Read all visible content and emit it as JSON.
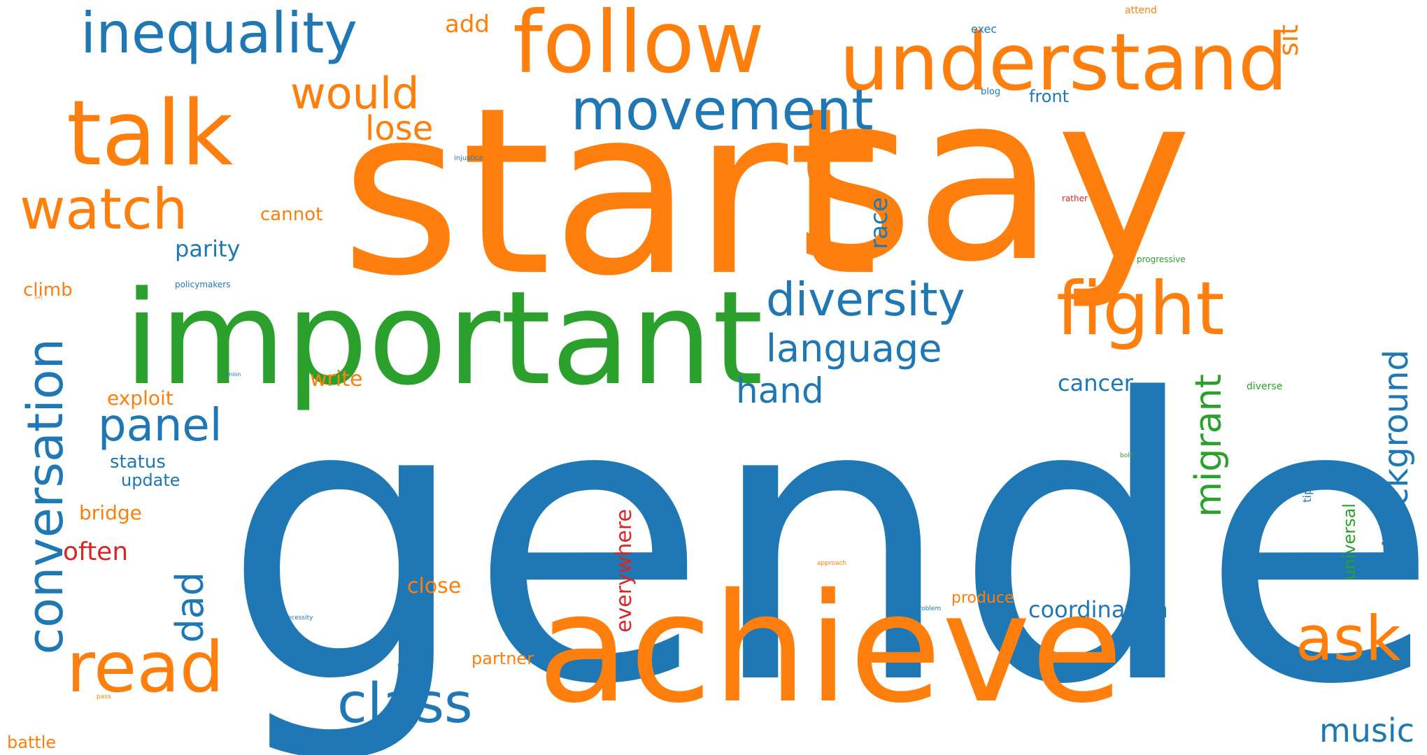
{
  "colors": {
    "blue": "#1f77b4",
    "orange": "#ff7f0e",
    "green": "#2ca02c",
    "red": "#d62728",
    "background": "#ffffff"
  },
  "words": [
    {
      "text": "gender",
      "color": "blue"
    },
    {
      "text": "start",
      "color": "orange"
    },
    {
      "text": "say",
      "color": "orange"
    },
    {
      "text": "achieve",
      "color": "orange"
    },
    {
      "text": "important",
      "color": "green"
    },
    {
      "text": "talk",
      "color": "orange"
    },
    {
      "text": "follow",
      "color": "orange"
    },
    {
      "text": "understand",
      "color": "orange"
    },
    {
      "text": "inequality",
      "color": "blue"
    },
    {
      "text": "read",
      "color": "orange"
    },
    {
      "text": "conversation",
      "color": "blue"
    },
    {
      "text": "fight",
      "color": "orange"
    },
    {
      "text": "movement",
      "color": "blue"
    },
    {
      "text": "watch",
      "color": "orange"
    },
    {
      "text": "diversity",
      "color": "blue"
    },
    {
      "text": "class",
      "color": "blue"
    },
    {
      "text": "ask",
      "color": "orange"
    },
    {
      "text": "panel",
      "color": "blue"
    },
    {
      "text": "would",
      "color": "orange"
    },
    {
      "text": "language",
      "color": "blue"
    },
    {
      "text": "migrant",
      "color": "green"
    },
    {
      "text": "background",
      "color": "blue"
    },
    {
      "text": "hand",
      "color": "blue"
    },
    {
      "text": "dad",
      "color": "blue"
    },
    {
      "text": "lose",
      "color": "orange"
    },
    {
      "text": "music",
      "color": "blue"
    },
    {
      "text": "race",
      "color": "blue"
    },
    {
      "text": "sit",
      "color": "orange"
    },
    {
      "text": "often",
      "color": "red"
    },
    {
      "text": "everywhere",
      "color": "red"
    },
    {
      "text": "coordination",
      "color": "blue"
    },
    {
      "text": "parity",
      "color": "blue"
    },
    {
      "text": "cancer",
      "color": "blue"
    },
    {
      "text": "add",
      "color": "orange"
    },
    {
      "text": "universal",
      "color": "green"
    },
    {
      "text": "close",
      "color": "orange"
    },
    {
      "text": "write",
      "color": "orange"
    },
    {
      "text": "exploit",
      "color": "orange"
    },
    {
      "text": "bridge",
      "color": "orange"
    },
    {
      "text": "status",
      "color": "blue"
    },
    {
      "text": "cannot",
      "color": "orange"
    },
    {
      "text": "climb",
      "color": "orange"
    },
    {
      "text": "update",
      "color": "blue"
    },
    {
      "text": "partner",
      "color": "orange"
    },
    {
      "text": "battle",
      "color": "orange"
    },
    {
      "text": "front",
      "color": "blue"
    },
    {
      "text": "produce",
      "color": "orange"
    },
    {
      "text": "exec",
      "color": "blue"
    },
    {
      "text": "attend",
      "color": "orange"
    },
    {
      "text": "blog",
      "color": "blue"
    },
    {
      "text": "tip",
      "color": "blue"
    },
    {
      "text": "progressive",
      "color": "green"
    },
    {
      "text": "diverse",
      "color": "green"
    },
    {
      "text": "rather",
      "color": "red"
    },
    {
      "text": "injustice",
      "color": "blue"
    },
    {
      "text": "policymakers",
      "color": "blue"
    },
    {
      "text": "bold",
      "color": "green"
    },
    {
      "text": "approach",
      "color": "orange"
    },
    {
      "text": "problem",
      "color": "blue"
    },
    {
      "text": "necessity",
      "color": "blue"
    },
    {
      "text": "gain",
      "color": "blue"
    },
    {
      "text": "union",
      "color": "blue"
    },
    {
      "text": "pass",
      "color": "orange"
    },
    {
      "text": "pay",
      "color": "orange"
    }
  ]
}
